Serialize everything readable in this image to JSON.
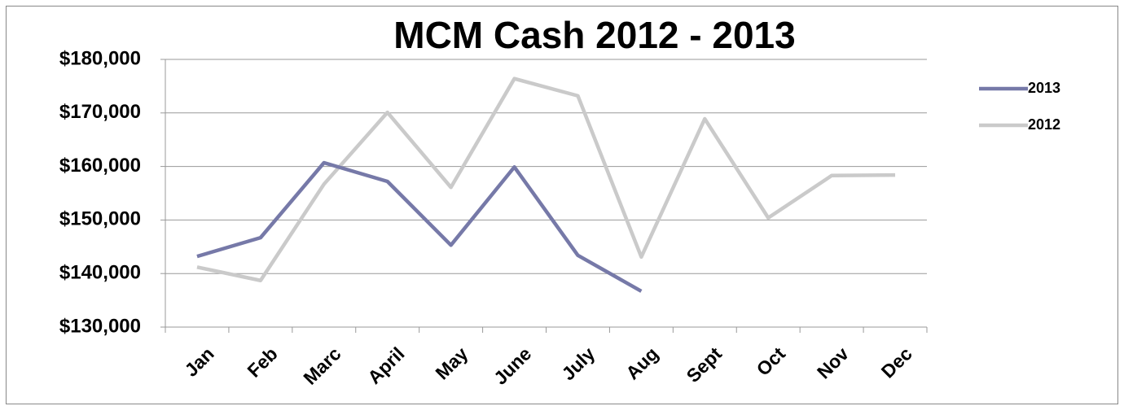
{
  "chart_data": {
    "type": "line",
    "title": "MCM Cash 2012 - 2013",
    "categories": [
      "Jan",
      "Feb",
      "Marc",
      "April",
      "May",
      "June",
      "July",
      "Aug",
      "Sept",
      "Oct",
      "Nov",
      "Dec"
    ],
    "series": [
      {
        "name": "2013",
        "color": "#7679a8",
        "values": [
          143200,
          146700,
          160700,
          157200,
          145300,
          159900,
          143400,
          136700,
          null,
          null,
          null,
          null
        ]
      },
      {
        "name": "2012",
        "color": "#cacaca",
        "values": [
          141200,
          138700,
          156700,
          170100,
          156100,
          176400,
          173200,
          143100,
          168900,
          150400,
          158300,
          158400
        ]
      }
    ],
    "ylim": [
      130000,
      180000
    ],
    "yticks": [
      {
        "value": 130000,
        "label": "$130,000"
      },
      {
        "value": 140000,
        "label": "$140,000"
      },
      {
        "value": 150000,
        "label": "$150,000"
      },
      {
        "value": 160000,
        "label": "$160,000"
      },
      {
        "value": 170000,
        "label": "$170,000"
      },
      {
        "value": 180000,
        "label": "$180,000"
      }
    ],
    "grid": true,
    "legend": "right"
  }
}
